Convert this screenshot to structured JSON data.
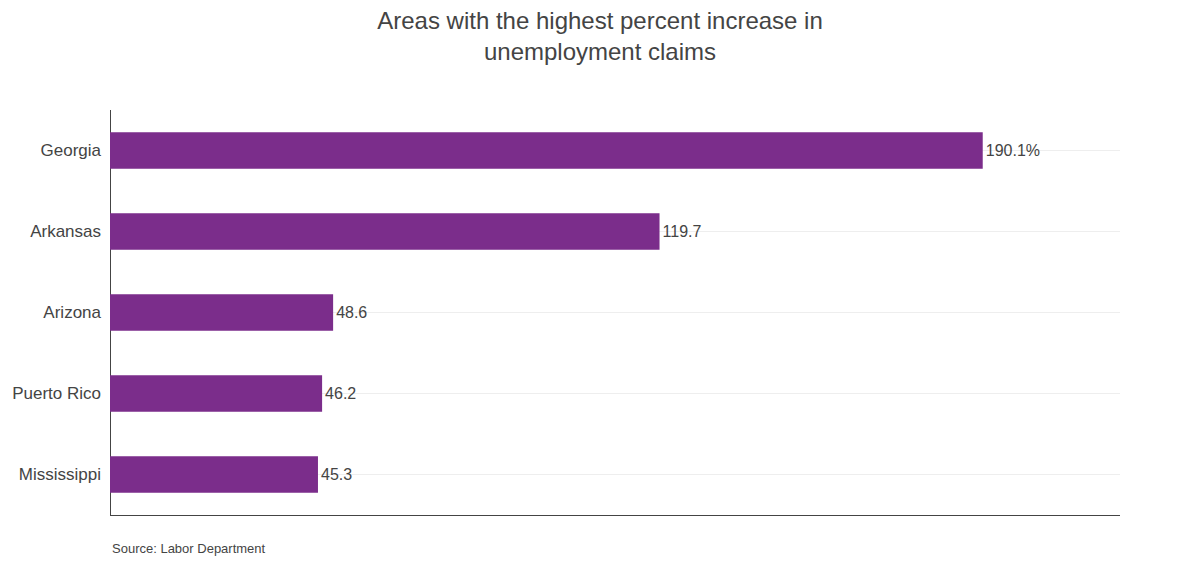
{
  "chart_data": {
    "type": "bar",
    "orientation": "horizontal",
    "title": "Areas with the highest percent increase in\nunemployment claims",
    "categories": [
      "Georgia",
      "Arkansas",
      "Arizona",
      "Puerto Rico",
      "Mississippi"
    ],
    "values": [
      190.1,
      119.7,
      48.6,
      46.2,
      45.3
    ],
    "value_labels": [
      "190.1%",
      "119.7",
      "48.6",
      "46.2",
      "45.3"
    ],
    "color": "#7B2D8B",
    "xlim": [
      0,
      220
    ],
    "xticks": [],
    "tick_labels": "y",
    "data_labels": true,
    "grid": true,
    "annotations": [
      "Source: Labor Department"
    ]
  }
}
